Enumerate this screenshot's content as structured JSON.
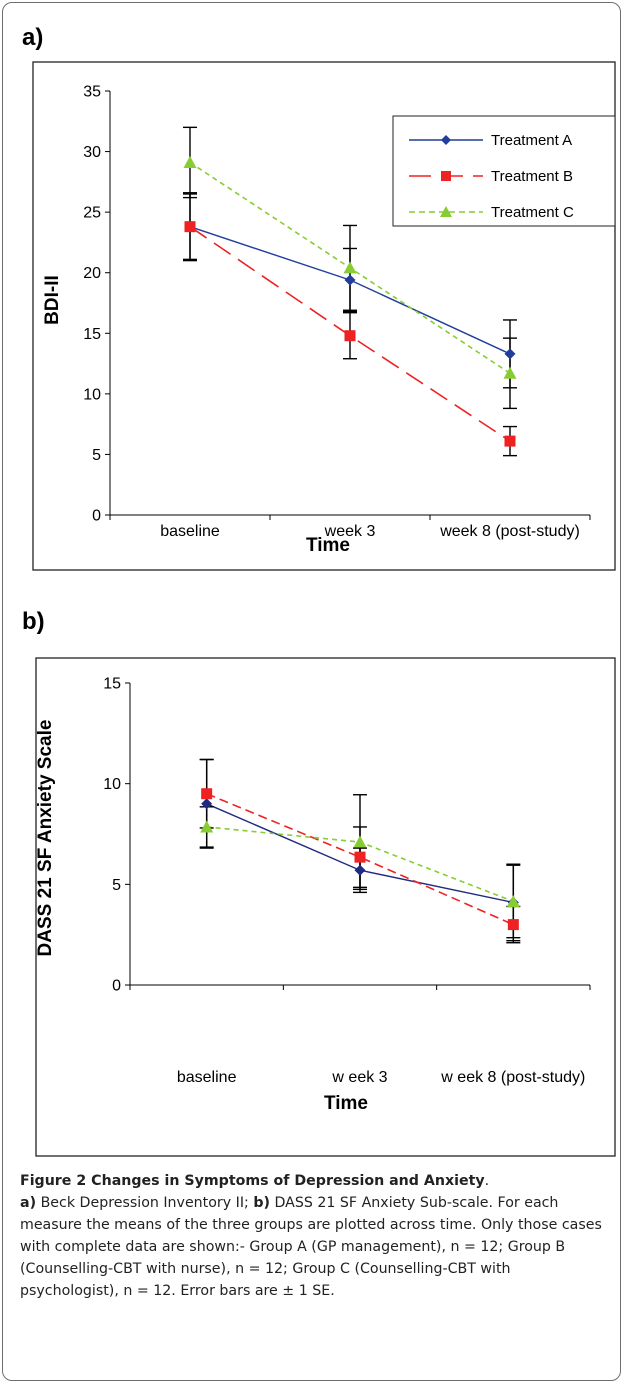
{
  "panels": {
    "a": "a)",
    "b": "b)"
  },
  "chart_data": [
    {
      "type": "line",
      "panel": "a)",
      "categories": [
        "baseline",
        "week 3",
        "week 8 (post-study)"
      ],
      "xlabel": "Time",
      "ylabel": "BDI-II",
      "ylim": [
        0,
        35
      ],
      "yticks": [
        0,
        5,
        10,
        15,
        20,
        25,
        30,
        35
      ],
      "grid": false,
      "legend": "top-right",
      "series": [
        {
          "name": "Treatment A",
          "values": [
            23.8,
            19.4,
            13.3
          ],
          "se": [
            2.8,
            2.6,
            2.8
          ],
          "color": "#1f3d99",
          "marker": "diamond",
          "dash": "solid"
        },
        {
          "name": "Treatment B",
          "values": [
            23.8,
            14.8,
            6.1
          ],
          "se": [
            2.7,
            1.9,
            1.2
          ],
          "color": "#ee2222",
          "marker": "square",
          "dash": "longdash"
        },
        {
          "name": "Treatment C",
          "values": [
            29.1,
            20.4,
            11.7
          ],
          "se": [
            2.9,
            3.5,
            2.9
          ],
          "color": "#88cc33",
          "marker": "triangle",
          "dash": "shortdash"
        }
      ]
    },
    {
      "type": "line",
      "panel": "b)",
      "categories": [
        "baseline",
        "w eek 3",
        "w eek 8 (post-study)"
      ],
      "xlabel": "Time",
      "ylabel": "DASS 21 SF Anxiety Scale",
      "ylim": [
        0,
        15
      ],
      "yticks": [
        0,
        5,
        10,
        15
      ],
      "grid": false,
      "legend": "none",
      "series": [
        {
          "name": "Treatment A",
          "values": [
            9.0,
            5.7,
            4.1
          ],
          "se": [
            2.2,
            1.1,
            1.9
          ],
          "color": "#1f2a80",
          "marker": "diamond",
          "dash": "solid"
        },
        {
          "name": "Treatment B",
          "values": [
            9.5,
            6.35,
            3.0
          ],
          "se": [
            1.7,
            1.5,
            0.9
          ],
          "color": "#ee2222",
          "marker": "square",
          "dash": "mediumdash"
        },
        {
          "name": "Treatment C",
          "values": [
            7.85,
            7.1,
            4.15
          ],
          "se": [
            1.0,
            2.35,
            1.8
          ],
          "color": "#88cc33",
          "marker": "triangle",
          "dash": "shortdash"
        }
      ]
    }
  ],
  "caption": {
    "title": "Figure 2 Changes in Symptoms of Depression and Anxiety",
    "title_end": ".",
    "a_label": "a)",
    "a_text": " Beck Depression Inventory II; ",
    "b_label": "b)",
    "b_text": " DASS 21 SF Anxiety Sub-scale. For each measure the means of the three groups are plotted across time. Only those cases with complete data are shown:- Group A (GP management), n = 12; Group B (Counselling-CBT with nurse), n = 12; Group C (Counselling-CBT with psychologist), n = 12. Error bars are ± 1 SE."
  }
}
